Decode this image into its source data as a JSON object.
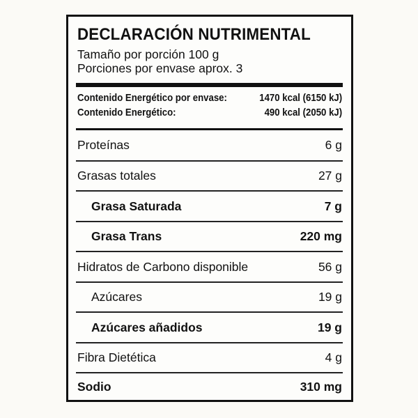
{
  "title": "DECLARACIÓN NUTRIMENTAL",
  "serving_size": "Tamaño por porción 100 g",
  "servings_per_container": "Porciones por envase aprox. 3",
  "energy": [
    {
      "label": "Contenido Energético por envase:",
      "value": "1470 kcal (6150 kJ)"
    },
    {
      "label": "Contenido Energético:",
      "value": "490 kcal (2050 kJ)"
    }
  ],
  "nutrients": [
    {
      "name": "Proteínas",
      "value": "6 g"
    },
    {
      "name": "Grasas totales",
      "value": "27 g"
    },
    {
      "name": "Grasa Saturada",
      "value": "7 g"
    },
    {
      "name": "Grasa Trans",
      "value": "220 mg"
    },
    {
      "name": "Hidratos de Carbono disponible",
      "value": "56 g"
    },
    {
      "name": "Azúcares",
      "value": "19 g"
    },
    {
      "name": "Azúcares añadidos",
      "value": "19 g"
    },
    {
      "name": "Fibra Dietética",
      "value": "4 g"
    },
    {
      "name": "Sodio",
      "value": "310 mg"
    }
  ]
}
